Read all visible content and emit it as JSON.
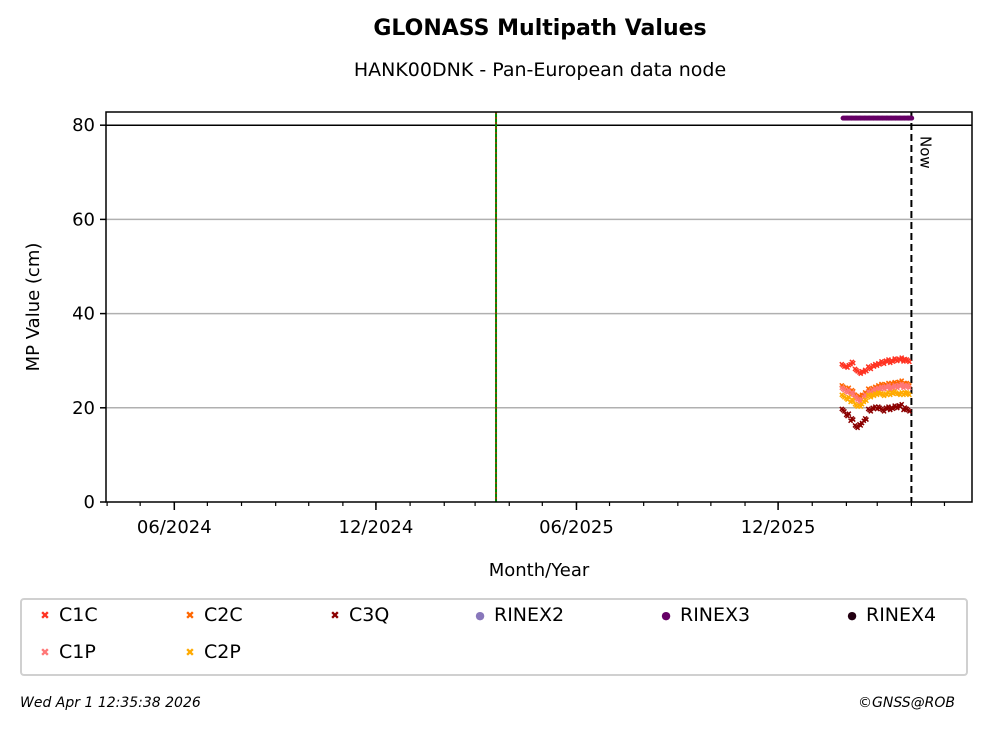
{
  "title": "GLONASS Multipath Values",
  "subtitle": "HANK00DNK - Pan-European data node",
  "footer": {
    "timestamp": "Wed Apr  1 12:35:38 2026",
    "copyright": "©GNSS@ROB"
  },
  "chart_data": {
    "type": "scatter",
    "xlabel": "Month/Year",
    "ylabel": "MP Value (cm)",
    "xlim": [
      "2024-03-31",
      "2026-05-26"
    ],
    "ylim": [
      0,
      82.8
    ],
    "x_ticks": [
      {
        "date": "2024-06-01",
        "label": "06/2024"
      },
      {
        "date": "2024-12-01",
        "label": "12/2024"
      },
      {
        "date": "2025-06-01",
        "label": "06/2025"
      },
      {
        "date": "2025-12-01",
        "label": "12/2025"
      }
    ],
    "y_ticks": [
      0,
      20,
      40,
      60,
      80
    ],
    "grid": "horizontal",
    "now_line": {
      "date": "2026-04-01",
      "label": "Now"
    },
    "green_line": {
      "date": "2025-03-20"
    },
    "reference_line_y": 80,
    "legend_position": "bottom",
    "dates": [
      "2026-01-29",
      "2026-02-02",
      "2026-02-06",
      "2026-02-10",
      "2026-02-14",
      "2026-02-18",
      "2026-02-22",
      "2026-02-26",
      "2026-03-02",
      "2026-03-06",
      "2026-03-10",
      "2026-03-14",
      "2026-03-18",
      "2026-03-22",
      "2026-03-26",
      "2026-03-29"
    ],
    "series": [
      {
        "name": "C1C",
        "marker": "x",
        "color": "#ff3322",
        "values": [
          29,
          28.8,
          29.5,
          28,
          27.5,
          27.8,
          28.5,
          29,
          29.2,
          29.6,
          30,
          29.8,
          30.2,
          30.4,
          30.1,
          30
        ]
      },
      {
        "name": "C2C",
        "marker": "x",
        "color": "#ff6600",
        "values": [
          24.5,
          24,
          23.5,
          22.5,
          22.5,
          23,
          23.8,
          24.2,
          24.5,
          24.8,
          25,
          25,
          25.2,
          25.5,
          25,
          25
        ]
      },
      {
        "name": "C3Q",
        "marker": "x",
        "color": "#8b0000",
        "values": [
          19.5,
          18.5,
          17.5,
          16,
          16.5,
          17.5,
          19.5,
          20,
          20,
          19.5,
          20,
          19.8,
          20.2,
          20.5,
          19.8,
          19.5
        ]
      },
      {
        "name": "C1P",
        "marker": "x",
        "color": "#ff7777",
        "values": [
          24,
          23.5,
          23,
          22,
          21.5,
          22.5,
          23.2,
          23.8,
          24,
          24.2,
          24.5,
          24.2,
          24.5,
          24.8,
          24.5,
          24.5
        ]
      },
      {
        "name": "C2P",
        "marker": "x",
        "color": "#ffaa00",
        "values": [
          22.5,
          22,
          21.5,
          20.5,
          20.5,
          21.5,
          22.5,
          22.8,
          23,
          22.8,
          23,
          23,
          23.2,
          23,
          23,
          23
        ]
      },
      {
        "name": "RINEX2",
        "marker": "o",
        "color": "#8877bb",
        "values": []
      },
      {
        "name": "RINEX3",
        "marker": "o",
        "color": "#660066",
        "values": [
          81.5,
          81.5,
          81.5,
          81.5,
          81.5,
          81.5,
          81.5,
          81.5,
          81.5,
          81.5,
          81.5,
          81.5,
          81.5,
          81.5,
          81.5,
          81.5
        ]
      },
      {
        "name": "RINEX4",
        "marker": "o",
        "color": "#220011",
        "values": []
      }
    ]
  }
}
